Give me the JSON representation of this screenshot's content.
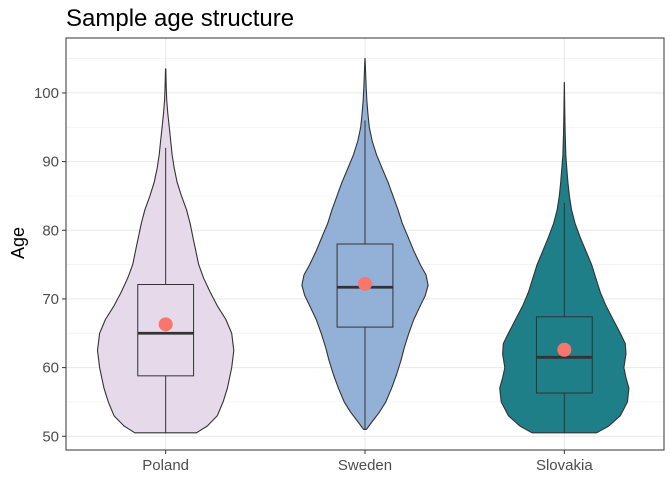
{
  "chart_data": {
    "type": "violin",
    "title": "Sample age structure",
    "xlabel": "",
    "ylabel": "Age",
    "ylim": [
      48,
      108
    ],
    "yticks": [
      50,
      60,
      70,
      80,
      90,
      100
    ],
    "grid": true,
    "legend": "none",
    "categories": [
      "Poland",
      "Sweden",
      "Slovakia"
    ],
    "colors": [
      "#e5d9ea",
      "#93b0d6",
      "#1e7f89"
    ],
    "mean_point_color": "#f8766d",
    "series": [
      {
        "category": "Poland",
        "min": 50.5,
        "max": 103.5,
        "box": {
          "q1": 58.8,
          "median": 65.0,
          "q3": 72.1,
          "whisker_low": 50.5,
          "whisker_high": 92.0
        },
        "mean": 66.3,
        "density": [
          [
            50.5,
            0.43
          ],
          [
            51.5,
            0.58
          ],
          [
            53,
            0.72
          ],
          [
            55,
            0.8
          ],
          [
            57,
            0.86
          ],
          [
            60,
            0.92
          ],
          [
            62.5,
            0.95
          ],
          [
            65,
            0.92
          ],
          [
            67,
            0.84
          ],
          [
            69,
            0.72
          ],
          [
            71,
            0.62
          ],
          [
            73,
            0.53
          ],
          [
            75,
            0.46
          ],
          [
            77,
            0.42
          ],
          [
            79,
            0.38
          ],
          [
            81,
            0.34
          ],
          [
            83,
            0.29
          ],
          [
            85,
            0.22
          ],
          [
            87,
            0.16
          ],
          [
            89,
            0.12
          ],
          [
            91,
            0.09
          ],
          [
            93,
            0.07
          ],
          [
            95,
            0.05
          ],
          [
            97,
            0.03
          ],
          [
            99,
            0.015
          ],
          [
            101,
            0.008
          ],
          [
            103.5,
            0.002
          ]
        ]
      },
      {
        "category": "Sweden",
        "min": 51.0,
        "max": 105.0,
        "box": {
          "q1": 65.9,
          "median": 71.7,
          "q3": 78.0,
          "whisker_low": 51.0,
          "whisker_high": 96.0
        },
        "mean": 72.2,
        "density": [
          [
            51,
            0.02
          ],
          [
            52,
            0.09
          ],
          [
            53.5,
            0.2
          ],
          [
            55,
            0.29
          ],
          [
            57,
            0.37
          ],
          [
            59,
            0.44
          ],
          [
            61,
            0.5
          ],
          [
            63,
            0.55
          ],
          [
            65,
            0.61
          ],
          [
            67,
            0.68
          ],
          [
            69,
            0.77
          ],
          [
            70.5,
            0.84
          ],
          [
            72,
            0.88
          ],
          [
            73.5,
            0.85
          ],
          [
            75,
            0.77
          ],
          [
            77,
            0.68
          ],
          [
            79,
            0.6
          ],
          [
            81,
            0.52
          ],
          [
            83,
            0.46
          ],
          [
            85,
            0.39
          ],
          [
            87,
            0.32
          ],
          [
            89,
            0.24
          ],
          [
            91,
            0.16
          ],
          [
            93,
            0.1
          ],
          [
            95,
            0.06
          ],
          [
            97,
            0.04
          ],
          [
            99,
            0.025
          ],
          [
            101,
            0.015
          ],
          [
            105,
            0.002
          ]
        ]
      },
      {
        "category": "Slovakia",
        "min": 50.5,
        "max": 101.5,
        "box": {
          "q1": 56.3,
          "median": 61.5,
          "q3": 67.4,
          "whisker_low": 50.5,
          "whisker_high": 84.0
        },
        "mean": 62.6,
        "density": [
          [
            50.5,
            0.45
          ],
          [
            51.5,
            0.62
          ],
          [
            53,
            0.78
          ],
          [
            55,
            0.88
          ],
          [
            57,
            0.9
          ],
          [
            58.5,
            0.86
          ],
          [
            60,
            0.83
          ],
          [
            62,
            0.86
          ],
          [
            63.5,
            0.85
          ],
          [
            65,
            0.78
          ],
          [
            67,
            0.68
          ],
          [
            69,
            0.58
          ],
          [
            71,
            0.5
          ],
          [
            73,
            0.44
          ],
          [
            75,
            0.38
          ],
          [
            77,
            0.3
          ],
          [
            79,
            0.22
          ],
          [
            81,
            0.15
          ],
          [
            83,
            0.1
          ],
          [
            85,
            0.07
          ],
          [
            87,
            0.05
          ],
          [
            89,
            0.035
          ],
          [
            91,
            0.02
          ],
          [
            94,
            0.012
          ],
          [
            97,
            0.006
          ],
          [
            101.5,
            0.001
          ]
        ]
      }
    ]
  }
}
